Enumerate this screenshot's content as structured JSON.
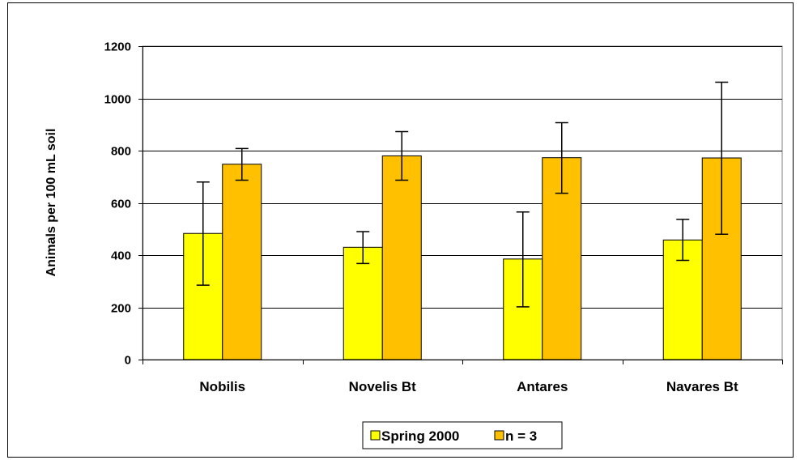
{
  "chart_data": {
    "type": "bar",
    "title": "",
    "xlabel": "",
    "ylabel": "Animals per 100 mL soil",
    "ylim": [
      0,
      1200
    ],
    "yticks": [
      0,
      200,
      400,
      600,
      800,
      1000,
      1200
    ],
    "grid": "horizontal",
    "legend_position": "bottom",
    "categories": [
      "Nobilis",
      "Novelis Bt",
      "Antares",
      "Navares Bt"
    ],
    "series": [
      {
        "name": "Spring 2000",
        "color": "#FFFF00",
        "values": [
          483,
          430,
          385,
          458
        ],
        "error_low": [
          285,
          368,
          202,
          380
        ],
        "error_high": [
          680,
          490,
          565,
          537
        ]
      },
      {
        "name": "n = 3",
        "color": "#FFC000",
        "values": [
          748,
          780,
          773,
          772
        ],
        "error_low": [
          687,
          687,
          637,
          480
        ],
        "error_high": [
          808,
          873,
          907,
          1062
        ]
      }
    ]
  }
}
